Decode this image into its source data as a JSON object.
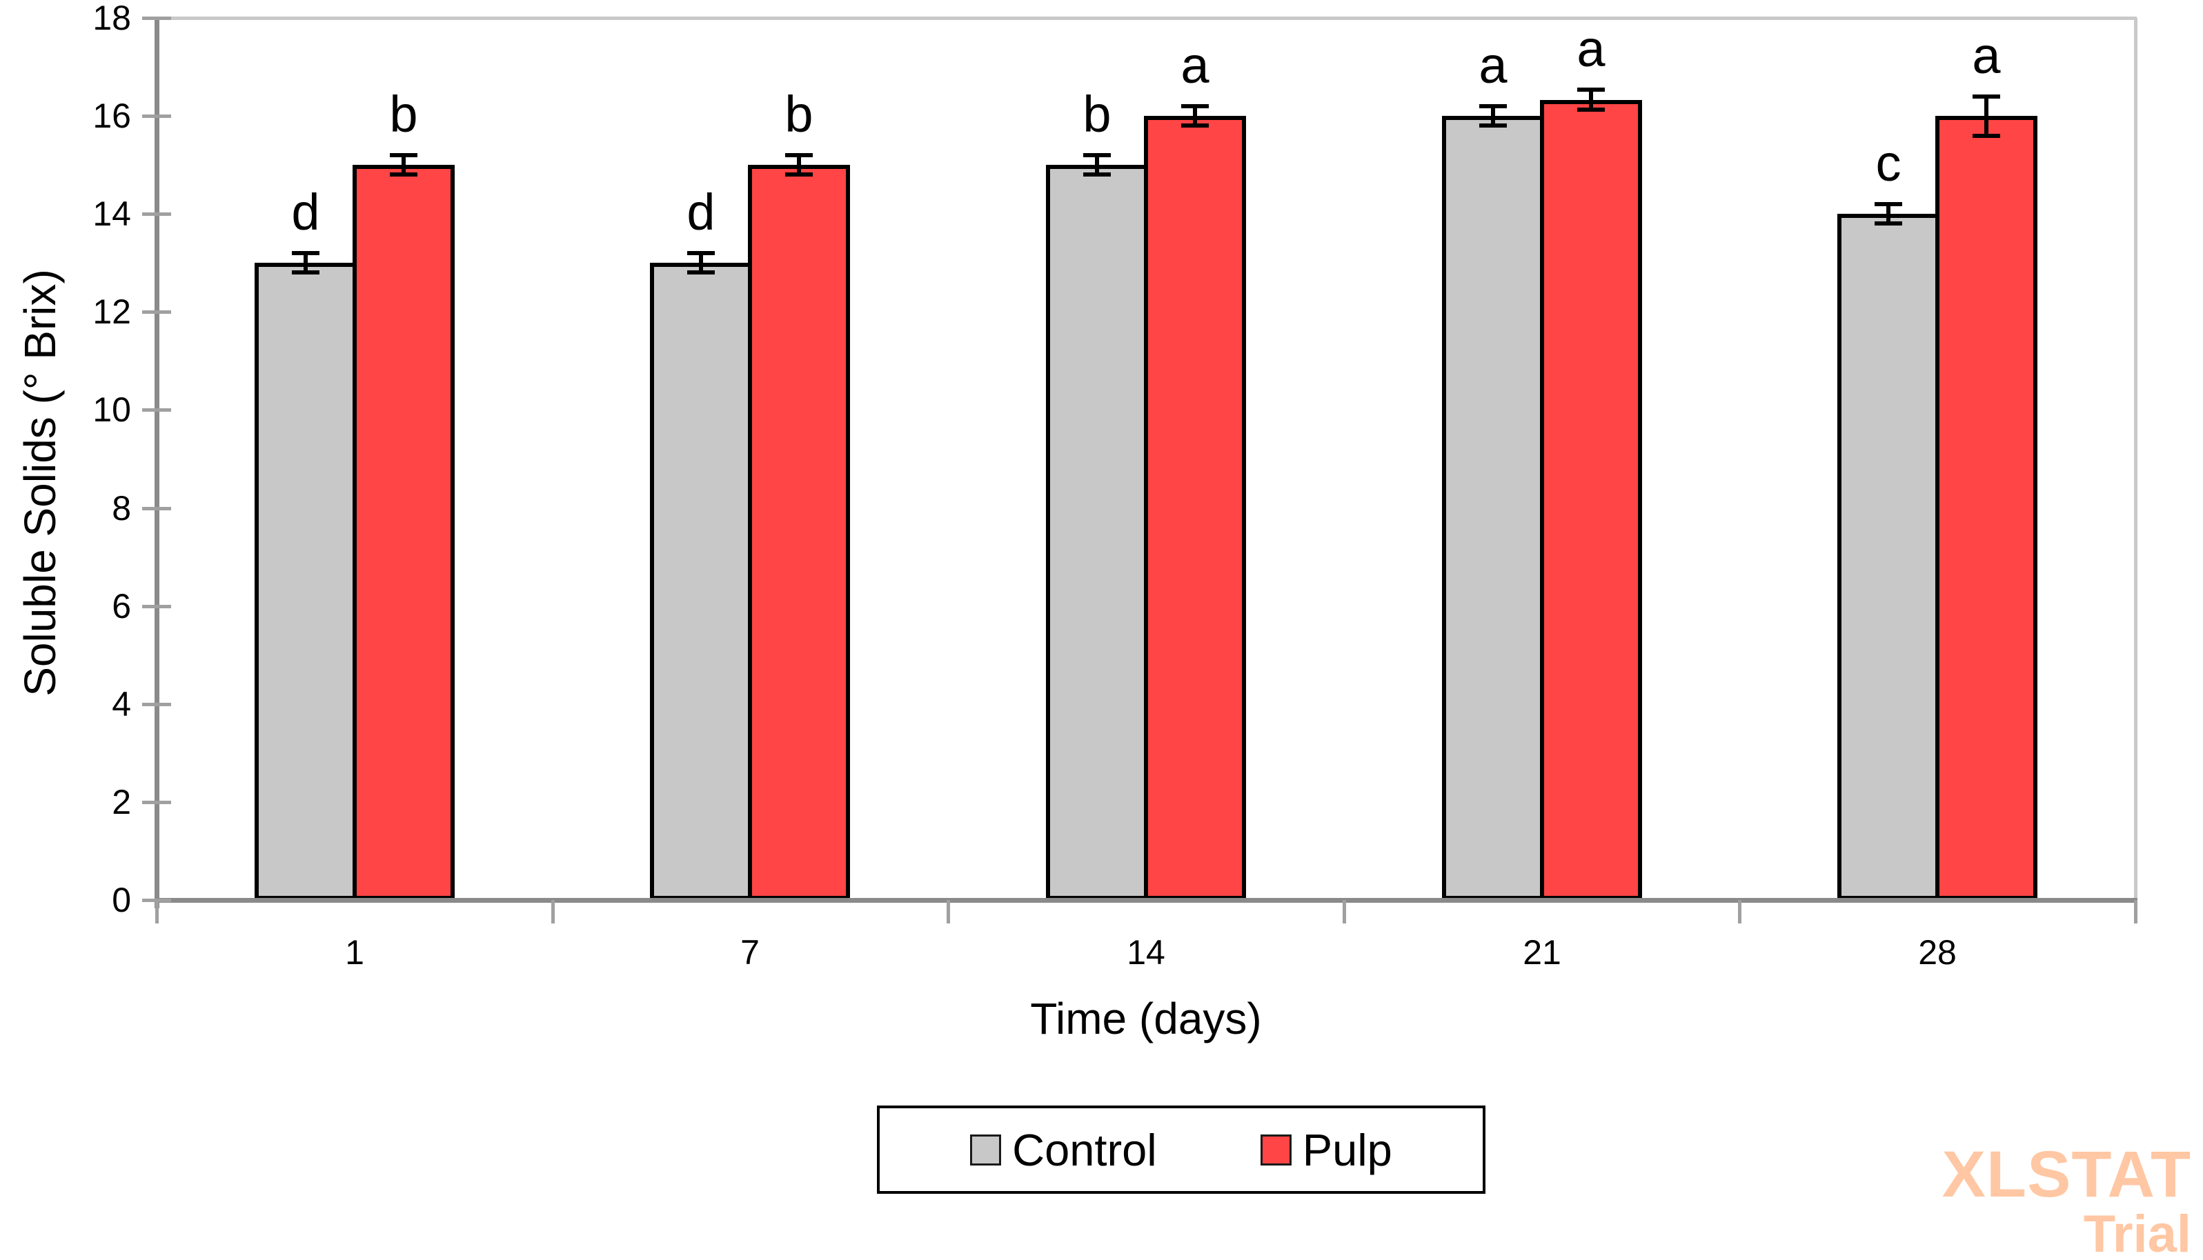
{
  "chart_data": {
    "type": "bar",
    "title": "",
    "xlabel": "Time (days)",
    "ylabel": "Soluble Solids (° Brix)",
    "categories": [
      "1",
      "7",
      "14",
      "21",
      "28"
    ],
    "ylim": [
      0,
      18
    ],
    "ytick_step": 2,
    "grid": false,
    "legend_position": "bottom-center",
    "error_bars": true,
    "series": [
      {
        "name": "Control",
        "color": "#C8C8C8",
        "values": [
          13,
          13,
          15,
          16,
          14
        ],
        "errors": [
          0.2,
          0.2,
          0.2,
          0.2,
          0.2
        ],
        "sig_letters": [
          "d",
          "d",
          "b",
          "a",
          "c"
        ]
      },
      {
        "name": "Pulp",
        "color": "#FF4545",
        "values": [
          15,
          15,
          16,
          16.33,
          16
        ],
        "errors": [
          0.2,
          0.2,
          0.2,
          0.2,
          0.4
        ],
        "sig_letters": [
          "b",
          "b",
          "a",
          "a",
          "a"
        ]
      }
    ]
  },
  "axes": {
    "y_ticks": [
      "0",
      "2",
      "4",
      "6",
      "8",
      "10",
      "12",
      "14",
      "16",
      "18"
    ]
  },
  "legend": {
    "items": [
      {
        "label": "Control",
        "color": "#C8C8C8"
      },
      {
        "label": "Pulp",
        "color": "#FF4545"
      }
    ]
  },
  "watermark": {
    "line1": "XLSTAT",
    "line2": "Trial",
    "color": "#FFC7A3"
  }
}
